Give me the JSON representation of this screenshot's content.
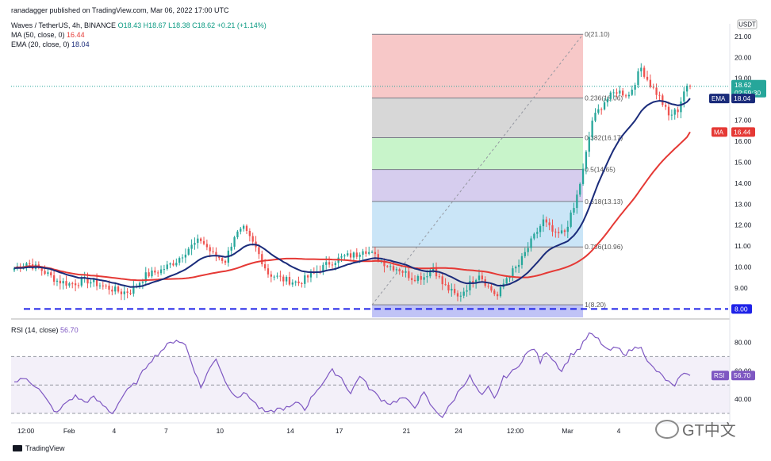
{
  "header": {
    "published": "ranadagger published on TradingView.com, Mar 06, 2022 17:00 UTC",
    "symbol": "Waves / TetherUS, 4h, BINANCE",
    "ohlc": "O18.43 H18.67 L18.38 C18.62 +0.21 (+1.14%)",
    "ma_label": "MA (50, close, 0)",
    "ma_value": "16.44",
    "ema_label": "EMA (20, close, 0)",
    "ema_value": "18.04",
    "rsi_label": "RSI (14, close)",
    "rsi_value": "56.70"
  },
  "footer": {
    "tradingview": "TradingView",
    "watermark": "GT中文"
  },
  "colors": {
    "up": "#26a69a",
    "down": "#ef5350",
    "ma": "#e53935",
    "ema": "#1a2b7a",
    "rsi": "#7e57c2",
    "support": "#1e22e8",
    "fib_zones": [
      "#f4b6b6",
      "#c9c9c9",
      "#b6f0b8",
      "#c8bce8",
      "#b8dcf4",
      "#d6d6d6"
    ]
  },
  "chart_data": [
    {
      "type": "candlestick",
      "title": "",
      "currency": "USDT",
      "ylim": [
        7.6,
        21.6
      ],
      "y_ticks": [
        "21.00",
        "20.00",
        "19.00",
        "17.00",
        "16.00",
        "15.00",
        "14.00",
        "13.00",
        "12.00",
        "11.00",
        "10.00",
        "9.00"
      ],
      "x_ticks": [
        "12:00",
        "Feb",
        "4",
        "7",
        "10",
        "14",
        "17",
        "21",
        "24",
        "12:00",
        "Mar",
        "4"
      ],
      "price_anchors": [
        [
          0,
          9.95
        ],
        [
          4,
          10.2
        ],
        [
          9,
          9.85
        ],
        [
          14,
          9.35
        ],
        [
          18,
          9.2
        ],
        [
          24,
          9.35
        ],
        [
          30,
          9.05
        ],
        [
          35,
          8.8
        ],
        [
          38,
          8.85
        ],
        [
          43,
          9.6
        ],
        [
          48,
          9.85
        ],
        [
          53,
          10.3
        ],
        [
          57,
          10.9
        ],
        [
          61,
          11.3
        ],
        [
          65,
          10.6
        ],
        [
          69,
          10.3
        ],
        [
          72,
          11.5
        ],
        [
          75,
          11.8
        ],
        [
          79,
          10.9
        ],
        [
          83,
          9.7
        ],
        [
          88,
          9.4
        ],
        [
          93,
          9.25
        ],
        [
          98,
          9.7
        ],
        [
          103,
          10.2
        ],
        [
          108,
          10.5
        ],
        [
          112,
          10.6
        ],
        [
          114,
          10.9
        ],
        [
          118,
          10.5
        ],
        [
          122,
          10.1
        ],
        [
          126,
          9.9
        ],
        [
          130,
          9.5
        ],
        [
          134,
          9.55
        ],
        [
          137,
          10.0
        ],
        [
          140,
          9.2
        ],
        [
          145,
          8.55
        ],
        [
          149,
          9.2
        ],
        [
          152,
          9.7
        ],
        [
          155,
          9.05
        ],
        [
          158,
          8.6
        ],
        [
          161,
          9.5
        ],
        [
          165,
          10.1
        ],
        [
          169,
          11.2
        ],
        [
          173,
          12.2
        ],
        [
          177,
          11.5
        ],
        [
          180,
          11.7
        ],
        [
          183,
          12.8
        ],
        [
          186,
          14.6
        ],
        [
          189,
          17.0
        ],
        [
          193,
          17.9
        ],
        [
          197,
          18.4
        ],
        [
          201,
          18.2
        ],
        [
          205,
          19.5
        ],
        [
          208,
          18.7
        ],
        [
          211,
          18.1
        ],
        [
          214,
          17.2
        ],
        [
          217,
          17.5
        ],
        [
          219,
          18.4
        ],
        [
          221,
          18.62
        ]
      ],
      "current": {
        "price": "18.62",
        "countdown": "02:59:30"
      },
      "ma": {
        "name": "MA",
        "value": "16.44"
      },
      "ema": {
        "name": "EMA",
        "value": "18.04"
      },
      "support": "8.00",
      "fibonacci": [
        {
          "level": "0",
          "price": 21.1,
          "label": "0(21.10)"
        },
        {
          "level": "0.236",
          "price": 18.06,
          "label": "0.236(18.06)"
        },
        {
          "level": "0.382",
          "price": 16.17,
          "label": "0.382(16.17)"
        },
        {
          "level": "0.5",
          "price": 14.65,
          "label": "0.5(14.65)"
        },
        {
          "level": "0.618",
          "price": 13.13,
          "label": "0.618(13.13)"
        },
        {
          "level": "0.786",
          "price": 10.96,
          "label": "0.786(10.96)"
        },
        {
          "level": "1",
          "price": 8.2,
          "label": "1(8.20)"
        }
      ]
    },
    {
      "type": "line",
      "title": "RSI (14, close)",
      "ylim": [
        25,
        92
      ],
      "y_ticks": [
        "80.00",
        "60.00",
        "40.00"
      ],
      "bands": [
        70,
        50,
        30
      ],
      "anchors": [
        [
          0,
          52
        ],
        [
          4,
          55
        ],
        [
          8,
          47
        ],
        [
          12,
          35
        ],
        [
          14,
          30
        ],
        [
          17,
          38
        ],
        [
          20,
          42
        ],
        [
          23,
          38
        ],
        [
          26,
          41
        ],
        [
          30,
          34
        ],
        [
          32,
          30
        ],
        [
          36,
          44
        ],
        [
          40,
          52
        ],
        [
          44,
          66
        ],
        [
          47,
          72
        ],
        [
          50,
          78
        ],
        [
          53,
          82
        ],
        [
          56,
          78
        ],
        [
          59,
          60
        ],
        [
          61,
          48
        ],
        [
          63,
          58
        ],
        [
          66,
          69
        ],
        [
          68,
          58
        ],
        [
          70,
          48
        ],
        [
          73,
          42
        ],
        [
          76,
          44
        ],
        [
          78,
          39
        ],
        [
          80,
          34
        ],
        [
          83,
          30
        ],
        [
          86,
          33
        ],
        [
          90,
          34
        ],
        [
          93,
          38
        ],
        [
          95,
          33
        ],
        [
          98,
          44
        ],
        [
          101,
          52
        ],
        [
          104,
          60
        ],
        [
          107,
          55
        ],
        [
          110,
          44
        ],
        [
          113,
          57
        ],
        [
          116,
          48
        ],
        [
          120,
          40
        ],
        [
          123,
          37
        ],
        [
          127,
          41
        ],
        [
          131,
          35
        ],
        [
          134,
          44
        ],
        [
          137,
          33
        ],
        [
          140,
          28
        ],
        [
          143,
          37
        ],
        [
          146,
          48
        ],
        [
          149,
          56
        ],
        [
          151,
          48
        ],
        [
          153,
          42
        ],
        [
          155,
          48
        ],
        [
          157,
          40
        ],
        [
          160,
          55
        ],
        [
          164,
          61
        ],
        [
          167,
          71
        ],
        [
          170,
          76
        ],
        [
          172,
          66
        ],
        [
          174,
          74
        ],
        [
          177,
          66
        ],
        [
          179,
          60
        ],
        [
          182,
          71
        ],
        [
          185,
          76
        ],
        [
          188,
          86
        ],
        [
          191,
          82
        ],
        [
          194,
          74
        ],
        [
          197,
          76
        ],
        [
          200,
          72
        ],
        [
          202,
          75
        ],
        [
          205,
          78
        ],
        [
          207,
          66
        ],
        [
          210,
          60
        ],
        [
          212,
          56
        ],
        [
          214,
          52
        ],
        [
          216,
          48
        ],
        [
          218,
          58
        ],
        [
          221,
          56.7
        ]
      ],
      "current": "56.70"
    }
  ]
}
